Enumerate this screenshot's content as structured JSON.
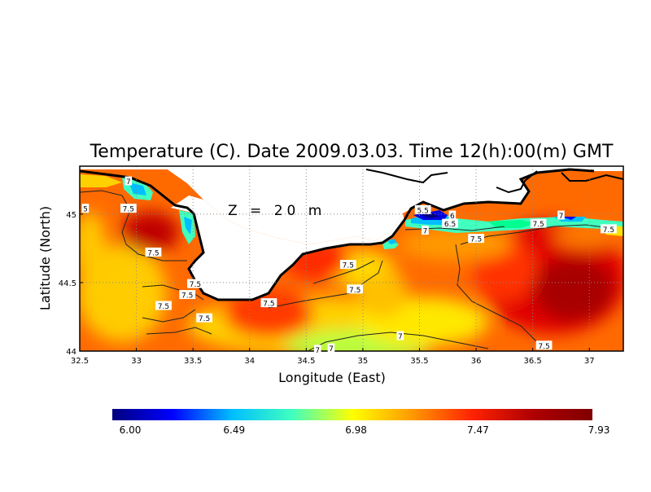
{
  "chart_data": {
    "type": "heatmap",
    "title": "Temperature (C). Date 2009.03.03. Time 12(h):00(m) GMT",
    "xlabel": "Longitude (East)",
    "ylabel": "Latitude (North)",
    "annotation": "Z = 20 m",
    "xlim": [
      32.5,
      37.3
    ],
    "ylim": [
      44.0,
      45.35
    ],
    "x_ticks": [
      "32.5",
      "33",
      "33.5",
      "34",
      "34.5",
      "35",
      "35.5",
      "36",
      "36.5",
      "37"
    ],
    "x_tick_values": [
      32.5,
      33,
      33.5,
      34,
      34.5,
      35,
      35.5,
      36,
      36.5,
      37
    ],
    "y_ticks": [
      "44",
      "44.5",
      "45"
    ],
    "y_tick_values": [
      44.0,
      44.5,
      45.0
    ],
    "grid": true,
    "colorbar": {
      "min": 6.0,
      "max": 7.93,
      "tick_labels": [
        "6.00",
        "6.49",
        "6.98",
        "7.47",
        "7.93"
      ],
      "tick_values": [
        6.0,
        6.49,
        6.98,
        7.47,
        7.93
      ],
      "colors": [
        "#00007f",
        "#0000ff",
        "#00bfff",
        "#40ffbf",
        "#ffff00",
        "#ff9900",
        "#ff2200",
        "#b00000",
        "#7f0000"
      ]
    },
    "contour_labels": [
      {
        "text": "7",
        "lon": 32.93,
        "lat": 45.24
      },
      {
        "text": "5",
        "lon": 32.55,
        "lat": 45.04
      },
      {
        "text": "7.5",
        "lon": 32.93,
        "lat": 45.04
      },
      {
        "text": "7.5",
        "lon": 33.15,
        "lat": 44.72
      },
      {
        "text": "7.5",
        "lon": 33.52,
        "lat": 44.49
      },
      {
        "text": "7.5",
        "lon": 33.45,
        "lat": 44.41
      },
      {
        "text": "7.5",
        "lon": 33.24,
        "lat": 44.33
      },
      {
        "text": "7.5",
        "lon": 33.6,
        "lat": 44.24
      },
      {
        "text": "7.5",
        "lon": 34.17,
        "lat": 44.35
      },
      {
        "text": "7.5",
        "lon": 34.87,
        "lat": 44.63
      },
      {
        "text": "7.5",
        "lon": 34.93,
        "lat": 44.45
      },
      {
        "text": "7",
        "lon": 34.6,
        "lat": 44.01
      },
      {
        "text": "7",
        "lon": 34.72,
        "lat": 44.02
      },
      {
        "text": "7",
        "lon": 35.33,
        "lat": 44.11
      },
      {
        "text": "5.5",
        "lon": 35.53,
        "lat": 45.03
      },
      {
        "text": "6",
        "lon": 35.79,
        "lat": 44.99
      },
      {
        "text": "6.5",
        "lon": 35.77,
        "lat": 44.93
      },
      {
        "text": "7",
        "lon": 35.55,
        "lat": 44.88
      },
      {
        "text": "7.5",
        "lon": 36.0,
        "lat": 44.82
      },
      {
        "text": "7.5",
        "lon": 36.55,
        "lat": 44.93
      },
      {
        "text": "7",
        "lon": 36.75,
        "lat": 44.99
      },
      {
        "text": "7.5",
        "lon": 37.17,
        "lat": 44.89
      },
      {
        "text": "7.5",
        "lon": 36.6,
        "lat": 44.04
      }
    ]
  }
}
